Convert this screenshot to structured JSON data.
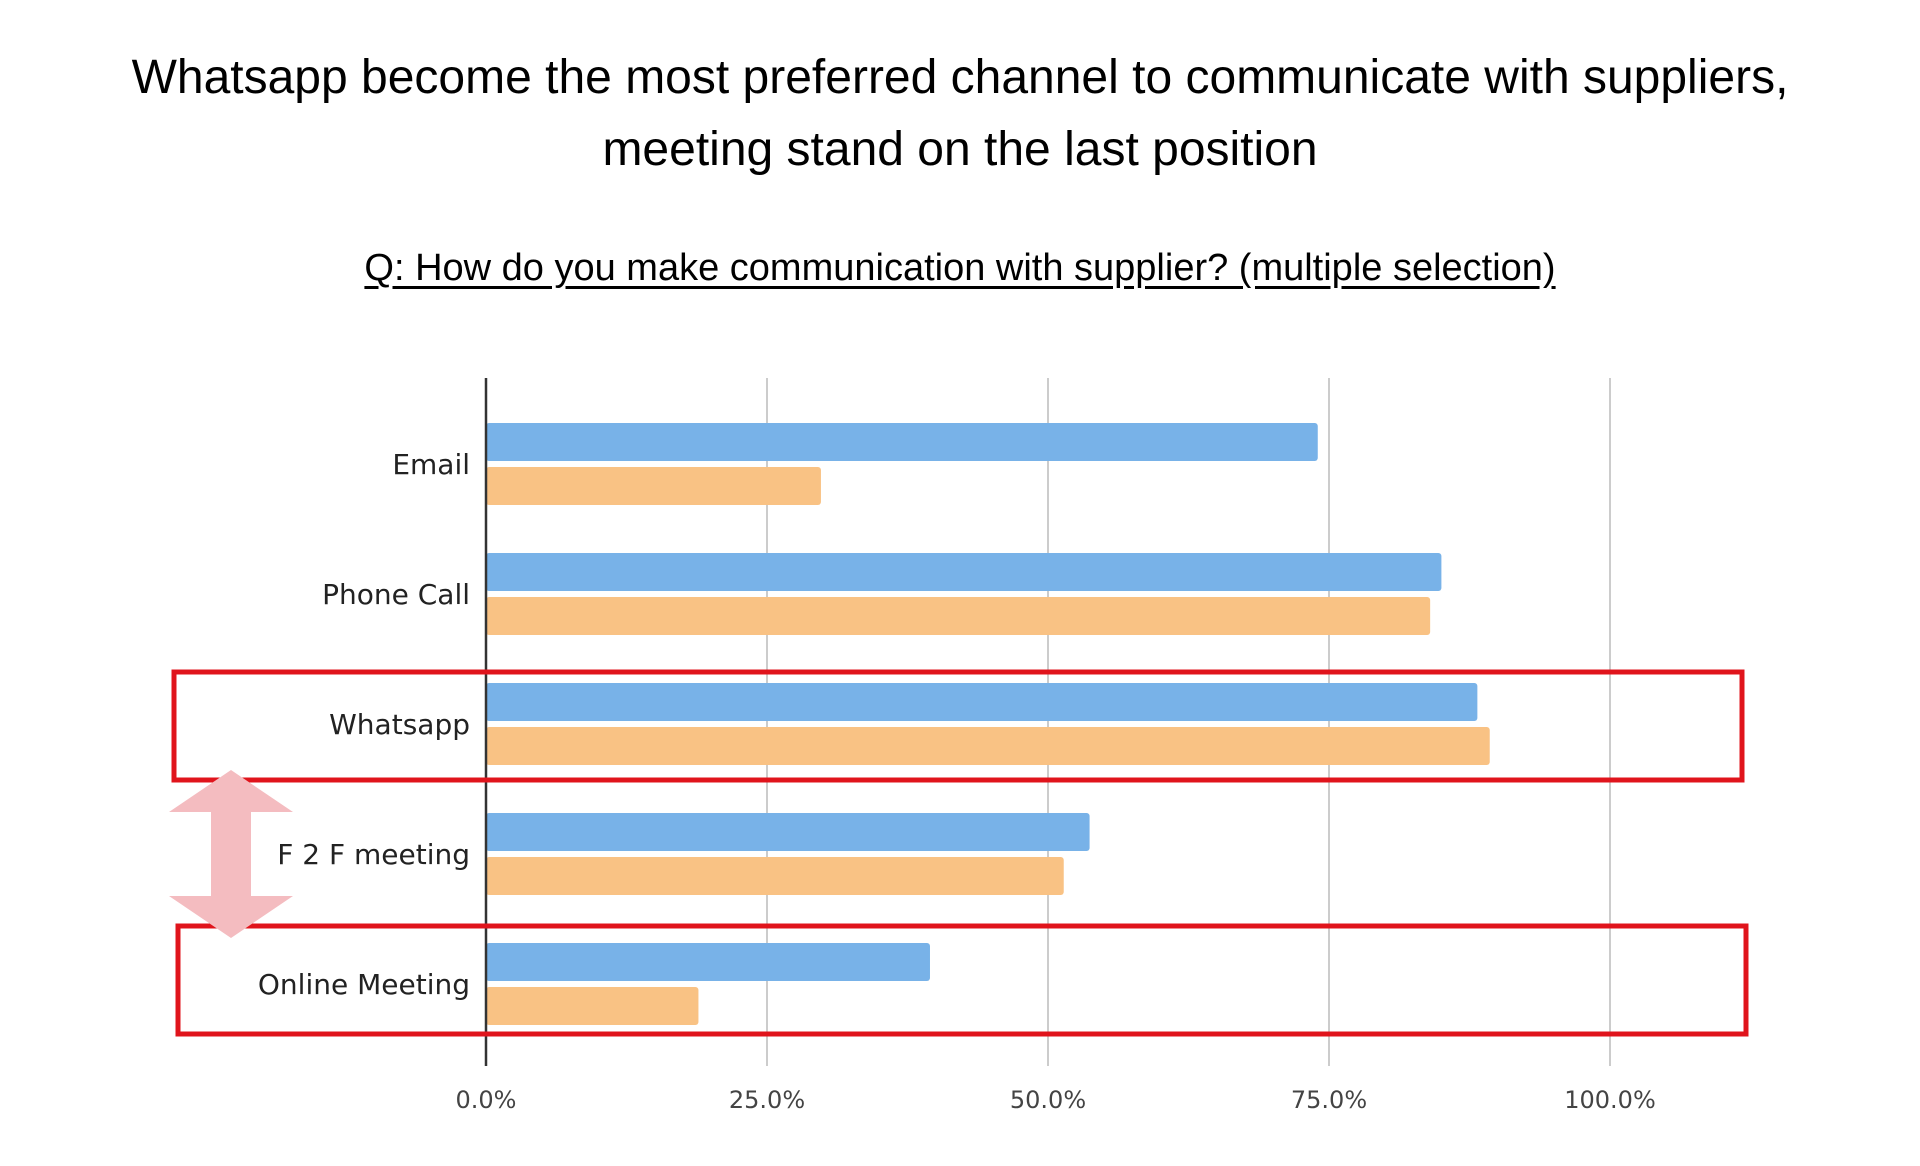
{
  "title_lines": [
    "Whatsapp become the most preferred channel to communicate with suppliers,",
    "meeting stand on the last position"
  ],
  "question": "Q: How do you make communication with supplier? (multiple selection)",
  "colors": {
    "series_1": "#78b2e8",
    "series_2": "#f9c284",
    "highlight_box": "#e0141c",
    "arrow": "#f4bcc0",
    "gridline": "#cccccc",
    "axis": "#333333"
  },
  "highlighted_categories": [
    "Whatsapp",
    "Online Meeting"
  ],
  "arrow_between": [
    "Whatsapp",
    "Online Meeting"
  ],
  "chart_data": {
    "type": "bar",
    "orientation": "horizontal",
    "categories": [
      "Email",
      "Phone Call",
      "Whatsapp",
      "F 2 F meeting",
      "Online Meeting"
    ],
    "series": [
      {
        "values": [
          74,
          85,
          88.2,
          53.7,
          39.5
        ]
      },
      {
        "values": [
          29.8,
          84,
          89.3,
          51.4,
          18.9
        ]
      }
    ],
    "xlim": [
      0,
      100
    ],
    "xticks": [
      0,
      25,
      50,
      75,
      100
    ],
    "xtick_labels": [
      "0.0%",
      "25.0%",
      "50.0%",
      "75.0%",
      "100.0%"
    ],
    "grid": true,
    "legend": "none"
  }
}
